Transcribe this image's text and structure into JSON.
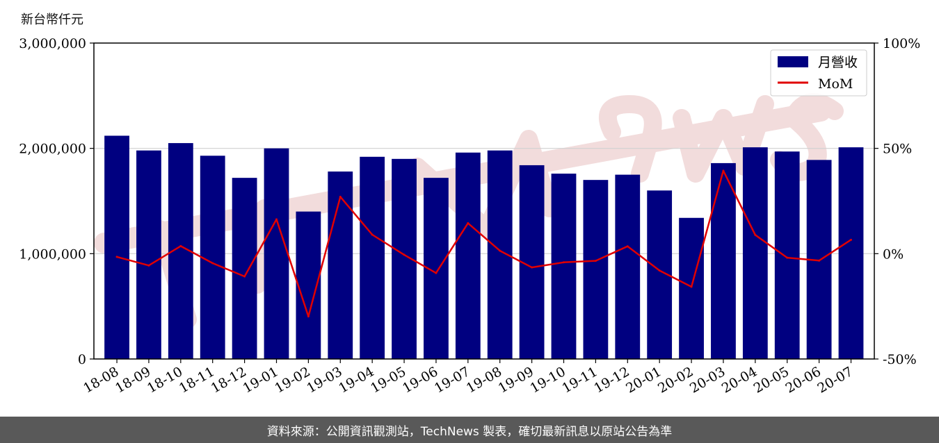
{
  "unit_label": "新台幣仟元",
  "footer_text": "資料來源：公開資訊觀測站，TechNews 製表，確切最新訊息以原站公告為準",
  "colors": {
    "bar": "#000080",
    "line": "#e00000",
    "footer_bg": "#595959"
  },
  "chart_data": {
    "type": "bar",
    "title": "",
    "xlabel": "",
    "ylabel": "",
    "categories": [
      "18-08",
      "18-09",
      "18-10",
      "18-11",
      "18-12",
      "19-01",
      "19-02",
      "19-03",
      "19-04",
      "19-05",
      "19-06",
      "19-07",
      "19-08",
      "19-09",
      "19-10",
      "19-11",
      "19-12",
      "20-01",
      "20-02",
      "20-03",
      "20-04",
      "20-05",
      "20-06",
      "20-07"
    ],
    "series": [
      {
        "name": "月營收",
        "type": "bar",
        "axis": "left",
        "values": [
          2120000,
          1980000,
          2050000,
          1930000,
          1720000,
          2000000,
          1400000,
          1780000,
          1920000,
          1900000,
          1720000,
          1960000,
          1980000,
          1840000,
          1760000,
          1700000,
          1750000,
          1600000,
          1340000,
          1860000,
          2010000,
          1970000,
          1890000,
          2010000
        ]
      },
      {
        "name": "MoM",
        "type": "line",
        "axis": "right",
        "values": [
          -1.5,
          -5.6,
          3.6,
          -4.5,
          -10.8,
          16.3,
          -29.8,
          27.0,
          9.0,
          -0.5,
          -9.2,
          14.5,
          1.4,
          -6.5,
          -4.1,
          -3.4,
          3.5,
          -8.0,
          -15.7,
          39.4,
          8.9,
          -1.9,
          -3.3,
          6.6
        ]
      }
    ],
    "ylim": [
      0,
      3000000
    ],
    "yticks": [
      "0",
      "1,000,000",
      "2,000,000",
      "3,000,000"
    ],
    "y2lim": [
      -50,
      100
    ],
    "y2ticks": [
      "-50%",
      "0%",
      "50%",
      "100%"
    ],
    "grid": "horizontal",
    "legend": {
      "position": "top-right",
      "entries": [
        "月營收",
        "MoM"
      ]
    }
  }
}
